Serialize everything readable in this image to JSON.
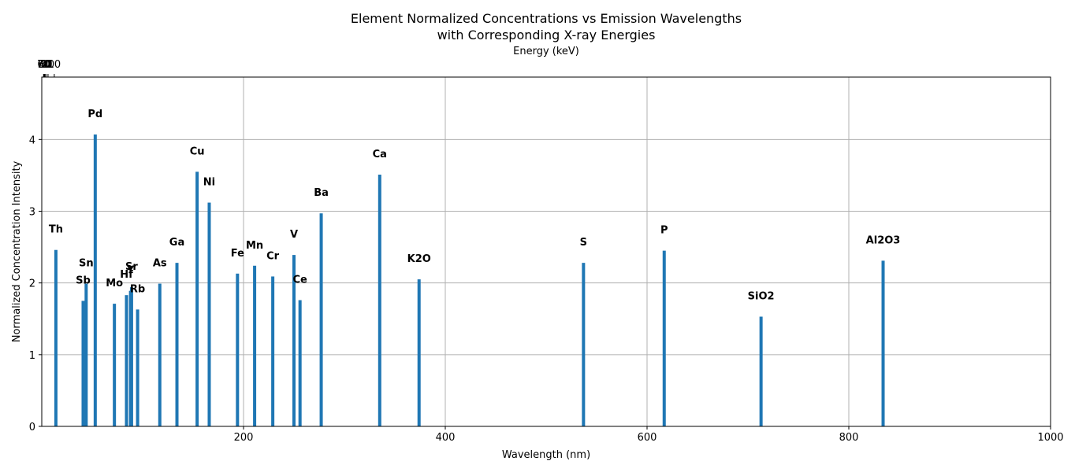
{
  "chart_data": {
    "type": "bar",
    "title_line1": "Element Normalized Concentrations vs Emission Wavelengths",
    "title_line2": "with Corresponding X-ray Energies",
    "xlabel": "Wavelength (nm)",
    "ylabel": "Normalized Concentration Intensity",
    "top_xlabel": "Energy (keV)",
    "xlim": [
      0,
      1000
    ],
    "ylim": [
      0,
      4.87
    ],
    "x_ticks": [
      200,
      400,
      600,
      800,
      1000
    ],
    "x_tick_labels": [
      "200",
      "400",
      "600",
      "800",
      "1000"
    ],
    "y_ticks": [
      0,
      1,
      2,
      3,
      4
    ],
    "y_tick_labels": [
      "0",
      "1",
      "2",
      "3",
      "4"
    ],
    "top_ticks_energy_keV": [
      70,
      60,
      50,
      40,
      30,
      20,
      10
    ],
    "top_tick_labels": [
      "70",
      "60",
      "50",
      "40",
      "30",
      "20",
      "10"
    ],
    "grid": true,
    "bar_color": "#1f77b4",
    "series": [
      {
        "labels": [
          "Th",
          "Sb",
          "Sn",
          "Pd",
          "Mo",
          "Hf",
          "Y",
          "Sr",
          "Rb",
          "As",
          "Ga",
          "Cu",
          "Ni",
          "Fe",
          "Mn",
          "Cr",
          "V",
          "Ce",
          "Ba",
          "Ca",
          "K2O",
          "S",
          "P",
          "SiO2",
          "Al2O3"
        ],
        "x": [
          14,
          41,
          44,
          53,
          72,
          84,
          88,
          89,
          95,
          117,
          134,
          154,
          166,
          194,
          211,
          229,
          250,
          256,
          277,
          335,
          374,
          537,
          617,
          713,
          834
        ],
        "values": [
          2.46,
          1.75,
          1.99,
          4.07,
          1.71,
          1.83,
          1.89,
          1.94,
          1.63,
          1.99,
          2.28,
          3.55,
          3.12,
          2.13,
          2.24,
          2.09,
          2.39,
          1.76,
          2.97,
          3.51,
          2.05,
          2.28,
          2.45,
          1.53,
          2.31
        ]
      }
    ]
  }
}
